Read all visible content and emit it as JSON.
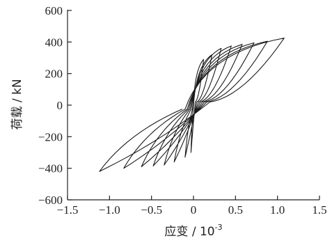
{
  "chart_data": {
    "type": "line",
    "xlabel": "应变 / 10",
    "xlabel_exponent": "-3",
    "ylabel": "荷载 / kN",
    "xlim": [
      -1.5,
      1.5
    ],
    "ylim": [
      -600,
      600
    ],
    "x_ticks": [
      -1.5,
      -1.0,
      -0.5,
      0,
      0.5,
      1.0,
      1.5
    ],
    "x_tick_labels": [
      "−1.5",
      "−1.0",
      "−0.5",
      "0",
      "0.5",
      "1.0",
      "1.5"
    ],
    "y_ticks": [
      600,
      400,
      200,
      0,
      -200,
      -400,
      -600
    ],
    "y_tick_labels": [
      "600",
      "400",
      "200",
      "0",
      "−200",
      "−400",
      "−600"
    ],
    "grid": false,
    "legend": "none",
    "line_color": "#1a1a1a",
    "series": [
      {
        "peak_pos": [
          0.12,
          290
        ],
        "peak_neg": [
          -0.03,
          -300
        ]
      },
      {
        "peak_pos": [
          0.22,
          320
        ],
        "peak_neg": [
          -0.1,
          -330
        ]
      },
      {
        "peak_pos": [
          0.33,
          360
        ],
        "peak_neg": [
          -0.23,
          -360
        ]
      },
      {
        "peak_pos": [
          0.45,
          375
        ],
        "peak_neg": [
          -0.35,
          -380
        ]
      },
      {
        "peak_pos": [
          0.58,
          385
        ],
        "peak_neg": [
          -0.48,
          -385
        ]
      },
      {
        "peak_pos": [
          0.72,
          395
        ],
        "peak_neg": [
          -0.62,
          -390
        ]
      },
      {
        "peak_pos": [
          0.88,
          405
        ],
        "peak_neg": [
          -0.83,
          -400
        ]
      },
      {
        "peak_pos": [
          1.08,
          425
        ],
        "peak_neg": [
          -1.12,
          -420
        ]
      }
    ]
  }
}
